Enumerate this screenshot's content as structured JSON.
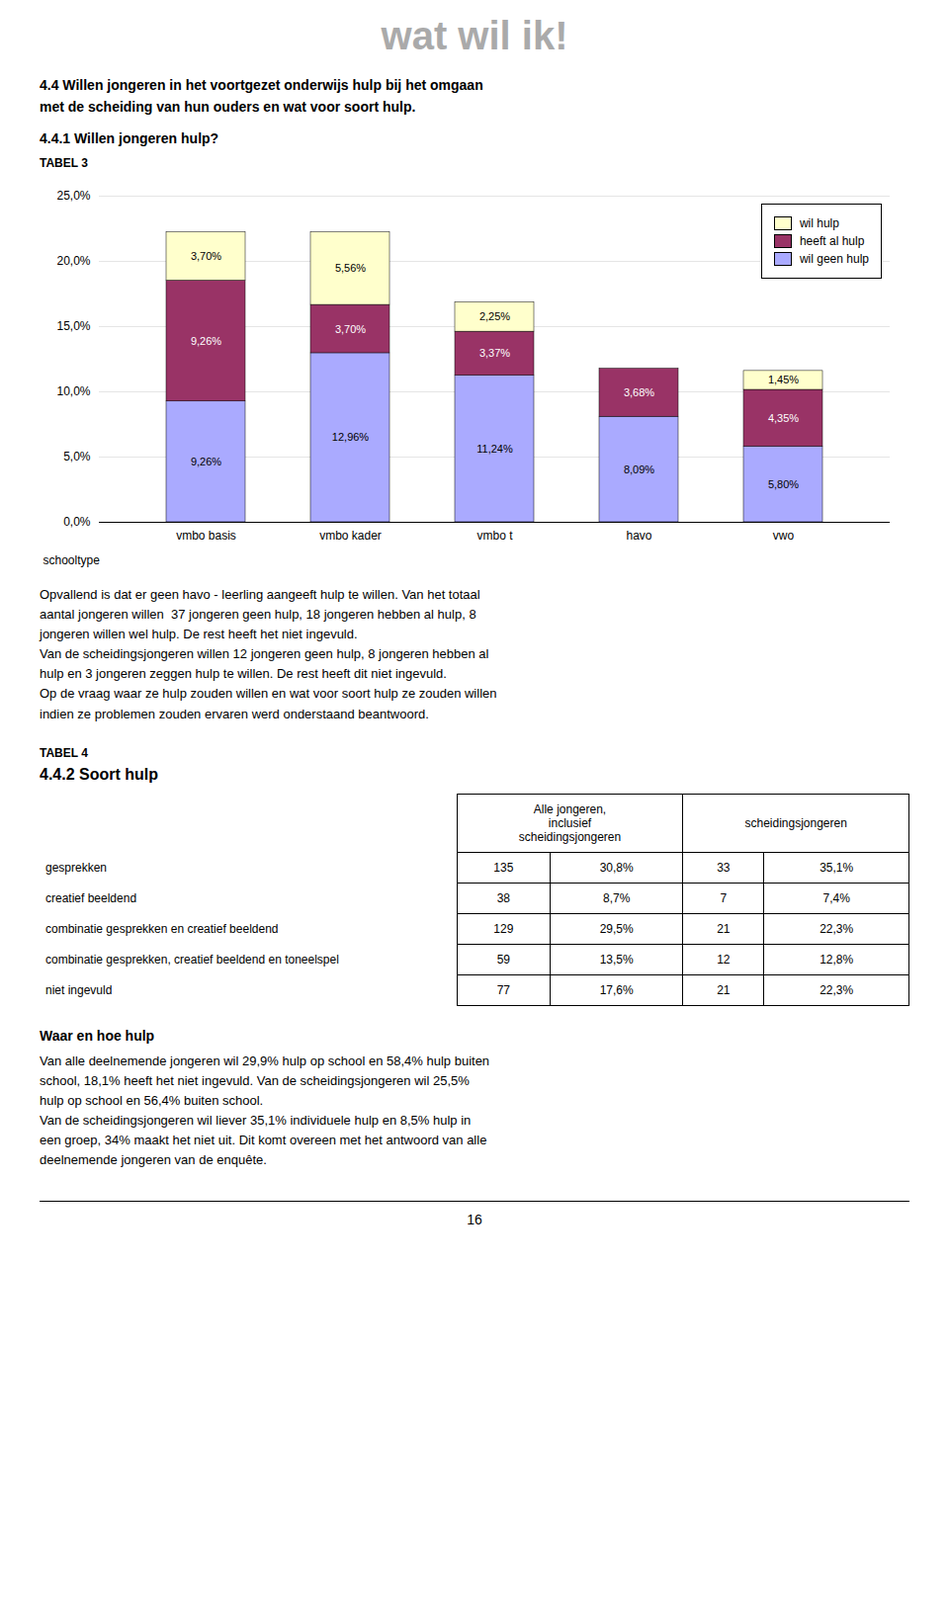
{
  "page_title": "wat wil ik!",
  "section_title": "4.4 Willen jongeren in het voortgezet onderwijs hulp bij het omgaan\nmet de scheiding van hun ouders en wat voor soort hulp.",
  "subsection_title": "4.4.1 Willen jongeren hulp?",
  "tabel_label": "TABEL 3",
  "chart_data": {
    "type": "bar",
    "stacked": true,
    "categories": [
      "vmbo basis",
      "vmbo kader",
      "vmbo t",
      "havo",
      "vwo"
    ],
    "series": [
      {
        "name": "wil geen hulp",
        "color": "#aaaaff",
        "values": [
          9.26,
          12.96,
          11.24,
          8.09,
          5.8
        ],
        "value_labels": [
          "9,26%",
          "12,96%",
          "11,24%",
          "8,09%",
          "5,80%"
        ]
      },
      {
        "name": "heeft al hulp",
        "color": "#993366",
        "values": [
          9.26,
          3.7,
          3.37,
          3.68,
          4.35
        ],
        "value_labels": [
          "9,26%",
          "3,70%",
          "3,37%",
          "3,68%",
          "4,35%"
        ]
      },
      {
        "name": "wil hulp",
        "color": "#ffffcc",
        "values": [
          3.7,
          5.56,
          2.25,
          0.0,
          1.45
        ],
        "value_labels": [
          "3,70%",
          "5,56%",
          "2,25%",
          null,
          "1,45%"
        ]
      }
    ],
    "xlabel": "schooltype",
    "ylim": [
      0,
      25
    ],
    "yticks": [
      {
        "value": 0,
        "label": "0,0%"
      },
      {
        "value": 5,
        "label": "5,0%"
      },
      {
        "value": 10,
        "label": "10,0%"
      },
      {
        "value": 15,
        "label": "15,0%"
      },
      {
        "value": 20,
        "label": "20,0%"
      },
      {
        "value": 25,
        "label": "25,0%"
      }
    ],
    "grid": true,
    "legend": "upper right",
    "data_labels": true
  },
  "text_block1": [
    "Opvallend is dat er geen havo - leerling aangeeft hulp te willen. Van het totaal",
    "aantal jongeren willen  37 jongeren geen hulp, 18 jongeren hebben al hulp, 8",
    "jongeren willen wel hulp. De rest heeft het niet ingevuld.",
    "Van de scheidingsjongeren willen 12 jongeren geen hulp, 8 jongeren hebben al",
    "hulp en 3 jongeren zeggen hulp te willen. De rest heeft dit niet ingevuld.",
    "Op de vraag waar ze hulp zouden willen en wat voor soort hulp ze zouden willen",
    "indien ze problemen zouden ervaren werd onderstaand beantwoord."
  ],
  "tabel4_label": "TABEL 4",
  "tabel4_title": "4.4.2 Soort hulp",
  "table": {
    "header": [
      "Alle jongeren,\ninclusief\nscheidingsjongeren",
      "scheidingsjongeren"
    ],
    "rows": [
      [
        "gesprekken",
        "135",
        "30,8%",
        "33",
        "35,1%"
      ],
      [
        "creatief beeldend",
        "38",
        "8,7%",
        "7",
        "7,4%"
      ],
      [
        "combinatie gesprekken en creatief beeldend",
        "129",
        "29,5%",
        "21",
        "22,3%"
      ],
      [
        "combinatie gesprekken, creatief beeldend en toneelspel",
        "59",
        "13,5%",
        "12",
        "12,8%"
      ],
      [
        "niet ingevuld",
        "77",
        "17,6%",
        "21",
        "22,3%"
      ]
    ]
  },
  "text_block2_title": "Waar en hoe hulp",
  "text_block2_lines": [
    "Van alle deelnemende jongeren wil 29,9% hulp op school en 58,4% hulp buiten",
    "school, 18,1% heeft het niet ingevuld. Van de scheidingsjongeren wil 25,5%",
    "hulp op school en 56,4% buiten school.",
    "Van de scheidingsjongeren wil liever 35,1% individuele hulp en 8,5% hulp in",
    "een groep, 34% maakt het niet uit. Dit komt overeen met het antwoord van alle",
    "deelnemende jongeren van de enquête."
  ],
  "page_number": "16"
}
